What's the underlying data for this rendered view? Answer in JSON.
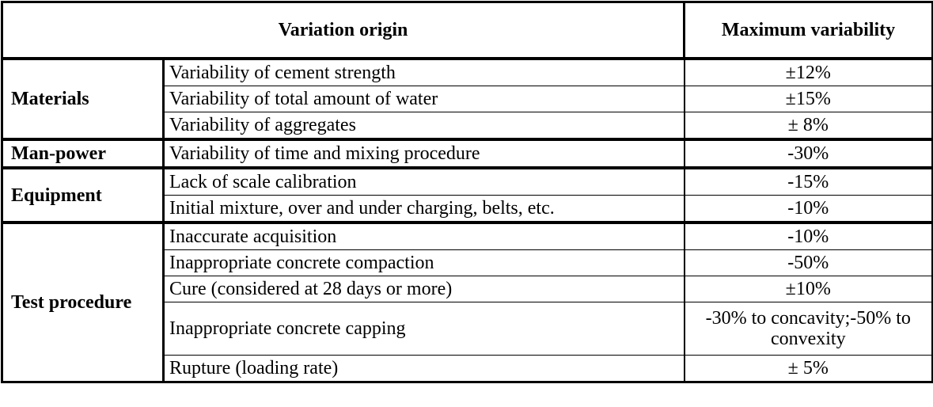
{
  "header": {
    "origin": "Variation origin",
    "max": "Maximum variability"
  },
  "groups": [
    {
      "name": "Materials",
      "rows": [
        {
          "origin": "Variability of cement strength",
          "max": "±12%"
        },
        {
          "origin": "Variability of total amount of water",
          "max": "±15%"
        },
        {
          "origin": "Variability of aggregates",
          "max": "± 8%"
        }
      ]
    },
    {
      "name": "Man-power",
      "rows": [
        {
          "origin": "Variability of time and mixing procedure",
          "max": "-30%"
        }
      ]
    },
    {
      "name": "Equipment",
      "rows": [
        {
          "origin": "Lack of scale calibration",
          "max": "-15%"
        },
        {
          "origin": "Initial mixture, over and under charging, belts, etc.",
          "max": "-10%"
        }
      ]
    },
    {
      "name": "Test procedure",
      "rows": [
        {
          "origin": "Inaccurate acquisition",
          "max": "-10%"
        },
        {
          "origin": "Inappropriate concrete compaction",
          "max": "-50%"
        },
        {
          "origin": "Cure (considered at 28 days or more)",
          "max": "±10%"
        },
        {
          "origin": "Inappropriate concrete capping",
          "max": "-30% to concavity;-50% to convexity"
        },
        {
          "origin": "Rupture (loading rate)",
          "max": "± 5%"
        }
      ]
    }
  ]
}
